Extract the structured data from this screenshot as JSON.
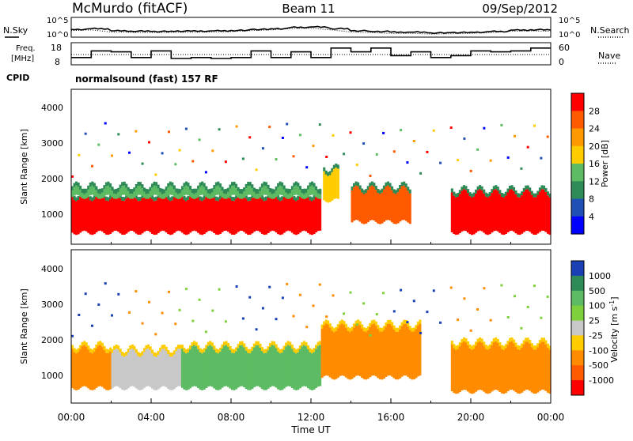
{
  "header": {
    "station": "McMurdo (fitACF)",
    "beam": "Beam 11",
    "date": "09/Sep/2012"
  },
  "noise_panel": {
    "left_label": "N.Sky",
    "right_label": "N.Search",
    "left_ticks": [
      "10^5",
      "10^0"
    ],
    "right_ticks": [
      "10^5",
      "10^0"
    ]
  },
  "freq_panel": {
    "left_label_1": "Freq.",
    "left_label_2": "[MHz]",
    "right_label": "Nave",
    "left_ticks": [
      "18",
      "8"
    ],
    "right_ticks": [
      "60",
      "0"
    ]
  },
  "cpid": {
    "label": "CPID",
    "value": "normalsound (fast) 157 RF"
  },
  "power_panel": {
    "ylabel": "Slant Range [km]",
    "y_ticks": [
      "4000",
      "3000",
      "2000",
      "1000"
    ],
    "colorbar_label": "Power [dB]",
    "colorbar_ticks": [
      "28",
      "24",
      "20",
      "16",
      "12",
      "8",
      "4"
    ],
    "colors": [
      "#ff0000",
      "#ff5a00",
      "#ff9900",
      "#ffcc00",
      "#5dbb63",
      "#2e8b57",
      "#1f4fb4",
      "#0000ff"
    ]
  },
  "velocity_panel": {
    "ylabel": "Slant Range [km]",
    "y_ticks": [
      "4000",
      "3000",
      "2000",
      "1000"
    ],
    "colorbar_label": "Velocity [m s",
    "colorbar_label_sup": "-1",
    "colorbar_ticks": [
      "1000",
      "500",
      "100",
      "25",
      "-25",
      "-100",
      "-500",
      "-1000"
    ],
    "colors": [
      "#1b3fb4",
      "#2e8b57",
      "#5dbb63",
      "#7fd13b",
      "#c8c8c8",
      "#ffcc00",
      "#ff8c00",
      "#ff5a00",
      "#ff0000"
    ]
  },
  "x_axis": {
    "ticks": [
      "00:00",
      "04:00",
      "08:00",
      "12:00",
      "16:00",
      "20:00",
      "00:00"
    ],
    "label": "Time UT"
  },
  "chart_data": [
    {
      "type": "line",
      "name": "noise",
      "x": [
        0,
        1,
        2,
        3,
        4,
        5,
        6,
        7,
        8,
        9,
        10,
        11,
        12,
        13,
        14,
        15,
        16,
        17,
        18,
        19,
        20,
        21,
        22,
        23,
        24
      ],
      "series": [
        {
          "name": "N.Sky",
          "values": [
            2,
            2.2,
            1.6,
            1.5,
            1.4,
            1.5,
            1.5,
            1.6,
            1.7,
            2,
            2.2,
            2.6,
            2.7,
            2.2,
            1.6,
            1.4,
            1.2,
            1.2,
            1,
            1.1,
            1.2,
            1.4,
            1.8,
            1.9,
            1.8
          ]
        }
      ],
      "ylim": [
        0,
        5
      ],
      "y_scale": "log"
    },
    {
      "type": "line",
      "name": "frequency",
      "x": [
        0,
        1,
        2,
        3,
        4,
        5,
        6,
        7,
        8,
        9,
        10,
        11,
        12,
        13,
        14,
        15,
        16,
        17,
        18,
        19,
        20,
        21,
        22,
        23,
        24
      ],
      "series": [
        {
          "name": "Freq. [MHz]",
          "values": [
            11,
            14.5,
            14,
            11,
            14.5,
            10.5,
            11,
            10.5,
            11,
            14.5,
            11,
            14,
            11,
            16,
            14,
            16,
            12,
            14,
            11,
            12,
            14.5,
            14,
            14.5,
            16,
            16
          ]
        }
      ],
      "ylim": [
        8,
        18
      ]
    },
    {
      "type": "heatmap",
      "name": "power",
      "xlabel": "Time UT",
      "ylabel": "Slant Range [km]",
      "xlim": [
        0,
        24
      ],
      "ylim": [
        180,
        4500
      ],
      "color_scale": [
        4,
        8,
        12,
        16,
        20,
        24,
        28
      ],
      "units": "dB",
      "regions": [
        {
          "t_start": 0.0,
          "t_end": 12.5,
          "r_min": 500,
          "r_max": 1500,
          "value": 28
        },
        {
          "t_start": 0.0,
          "t_end": 12.5,
          "r_min": 1500,
          "r_max": 1700,
          "value": 12
        },
        {
          "t_start": 12.6,
          "t_end": 13.4,
          "r_min": 1400,
          "r_max": 2200,
          "value": 16
        },
        {
          "t_start": 14.0,
          "t_end": 17.0,
          "r_min": 800,
          "r_max": 1700,
          "value": 24
        },
        {
          "t_start": 19.0,
          "t_end": 24.0,
          "r_min": 500,
          "r_max": 1600,
          "value": 28
        }
      ]
    },
    {
      "type": "heatmap",
      "name": "velocity",
      "xlabel": "Time UT",
      "ylabel": "Slant Range [km]",
      "xlim": [
        0,
        24
      ],
      "ylim": [
        180,
        4500
      ],
      "color_scale": [
        -1000,
        -500,
        -100,
        -25,
        25,
        100,
        500,
        1000
      ],
      "units": "m s^-1",
      "regions": [
        {
          "t_start": 0.0,
          "t_end": 2.0,
          "r_min": 600,
          "r_max": 1700,
          "value": -300
        },
        {
          "t_start": 2.0,
          "t_end": 5.5,
          "r_min": 600,
          "r_max": 1600,
          "value": 0
        },
        {
          "t_start": 5.5,
          "t_end": 12.5,
          "r_min": 600,
          "r_max": 1700,
          "value": 300
        },
        {
          "t_start": 12.5,
          "t_end": 17.5,
          "r_min": 900,
          "r_max": 2300,
          "value": -300
        },
        {
          "t_start": 19.0,
          "t_end": 24.0,
          "r_min": 500,
          "r_max": 1800,
          "value": -300
        }
      ]
    }
  ]
}
